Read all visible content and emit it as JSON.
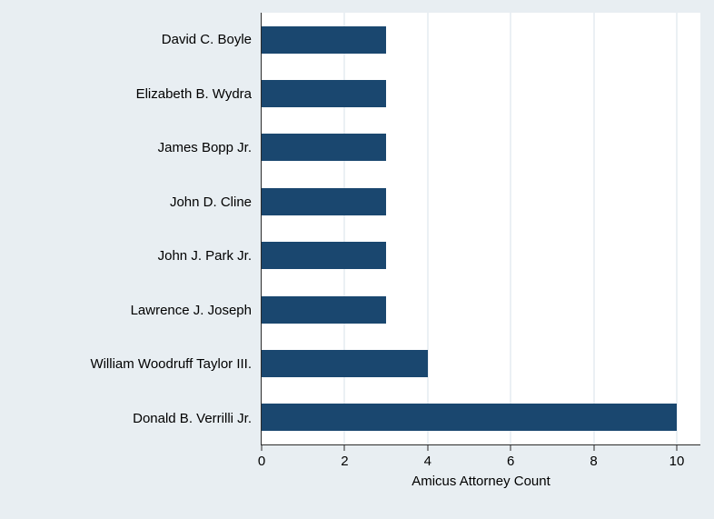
{
  "chart_data": {
    "type": "bar",
    "orientation": "horizontal",
    "title": "",
    "xlabel": "Amicus Attorney Count",
    "ylabel": "",
    "categories": [
      "David C. Boyle",
      "Elizabeth B. Wydra",
      "James Bopp Jr.",
      "John D. Cline",
      "John J. Park Jr.",
      "Lawrence J. Joseph",
      "William Woodruff Taylor III.",
      "Donald B. Verrilli Jr."
    ],
    "values": [
      3,
      3,
      3,
      3,
      3,
      3,
      4,
      10
    ],
    "xlim": [
      0,
      10
    ],
    "xticks": [
      0,
      2,
      4,
      6,
      8,
      10
    ],
    "grid": true,
    "legend": "none",
    "colors": {
      "bar": "#1a476f",
      "background": "#e8eef2",
      "plot_background": "#ffffff",
      "gridline": "#d7e1ea",
      "axis_line": "#2b2b2b",
      "text": "#000000"
    }
  }
}
